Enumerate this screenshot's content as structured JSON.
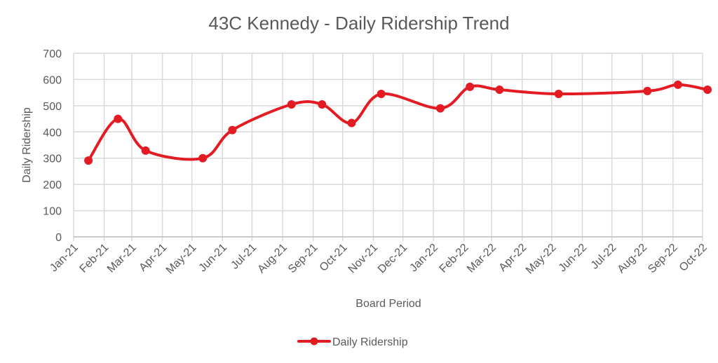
{
  "chart_data": {
    "type": "line",
    "title": "43C Kennedy - Daily Ridership Trend",
    "xlabel": "Board Period",
    "ylabel": "Daily Ridership",
    "ylim": [
      0,
      700
    ],
    "yticks": [
      0,
      100,
      200,
      300,
      400,
      500,
      600,
      700
    ],
    "x_axis_type": "date",
    "x_ticks": [
      "Jan-21",
      "Feb-21",
      "Mar-21",
      "Apr-21",
      "May-21",
      "Jun-21",
      "Jul-21",
      "Aug-21",
      "Sep-21",
      "Oct-21",
      "Nov-21",
      "Dec-21",
      "Jan-22",
      "Feb-22",
      "Mar-22",
      "Apr-22",
      "May-22",
      "Jun-22",
      "Jul-22",
      "Aug-22",
      "Sep-22",
      "Oct-22"
    ],
    "grid": true,
    "legend_position": "bottom",
    "smoothed": true,
    "series": [
      {
        "name": "Daily Ridership",
        "color": "#e31b23",
        "points": [
          {
            "x": "2021-01-16",
            "y": 291
          },
          {
            "x": "2021-02-15",
            "y": 450
          },
          {
            "x": "2021-03-15",
            "y": 329
          },
          {
            "x": "2021-05-12",
            "y": 300
          },
          {
            "x": "2021-06-11",
            "y": 407
          },
          {
            "x": "2021-08-10",
            "y": 505
          },
          {
            "x": "2021-09-10",
            "y": 505
          },
          {
            "x": "2021-10-10",
            "y": 434
          },
          {
            "x": "2021-11-09",
            "y": 545
          },
          {
            "x": "2022-01-08",
            "y": 490
          },
          {
            "x": "2022-02-07",
            "y": 572
          },
          {
            "x": "2022-03-09",
            "y": 561
          },
          {
            "x": "2022-05-08",
            "y": 545
          },
          {
            "x": "2022-08-06",
            "y": 556
          },
          {
            "x": "2022-09-06",
            "y": 580
          },
          {
            "x": "2022-10-06",
            "y": 561
          }
        ]
      }
    ]
  }
}
